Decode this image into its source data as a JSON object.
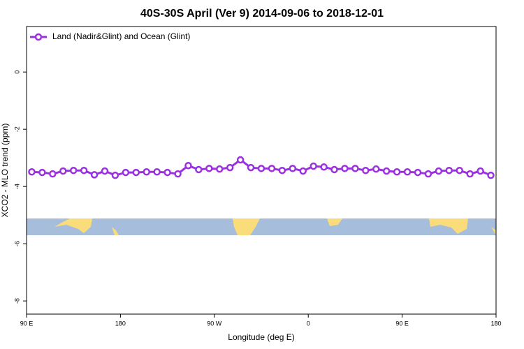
{
  "chart_data": {
    "type": "line",
    "title": "40S-30S April (Ver 9)   2014-09-06 to 2018-12-01",
    "x_label": "Longitude (deg E)",
    "y_label": "XCO2 - MLO trend (ppm)",
    "x": [
      95,
      105,
      115,
      125,
      135,
      145,
      155,
      165,
      175,
      185,
      195,
      205,
      215,
      225,
      235,
      245,
      255,
      265,
      275,
      285,
      295,
      305,
      315,
      325,
      335,
      345,
      355,
      365,
      375,
      385,
      395,
      405,
      415,
      425,
      435,
      445,
      455,
      465,
      475,
      485,
      495,
      505,
      515,
      525,
      535
    ],
    "series": [
      {
        "name": "Land (Nadir&Glint) and Ocean (Glint)",
        "color": "#9b30e0",
        "values": [
          -3.49,
          -3.51,
          -3.56,
          -3.46,
          -3.44,
          -3.44,
          -3.59,
          -3.46,
          -3.61,
          -3.51,
          -3.51,
          -3.49,
          -3.49,
          -3.51,
          -3.56,
          -3.27,
          -3.41,
          -3.37,
          -3.39,
          -3.34,
          -3.07,
          -3.34,
          -3.37,
          -3.37,
          -3.44,
          -3.37,
          -3.46,
          -3.29,
          -3.32,
          -3.41,
          -3.37,
          -3.37,
          -3.44,
          -3.39,
          -3.46,
          -3.49,
          -3.49,
          -3.51,
          -3.56,
          -3.46,
          -3.44,
          -3.44,
          -3.56,
          -3.46,
          -3.61
        ]
      }
    ],
    "xlim": [
      90,
      540
    ],
    "xticks": [
      {
        "value": 90,
        "label": "90 E"
      },
      180,
      {
        "value": 270,
        "label": "90 W"
      },
      {
        "value": 360,
        "label": "0"
      },
      {
        "value": 450,
        "label": "90 E"
      },
      {
        "value": 540,
        "label": "180"
      }
    ],
    "ylim": [
      -8.46,
      1.59
    ],
    "yticks": [
      0,
      -2,
      -4,
      -6,
      -8
    ],
    "legend": "top-left"
  }
}
